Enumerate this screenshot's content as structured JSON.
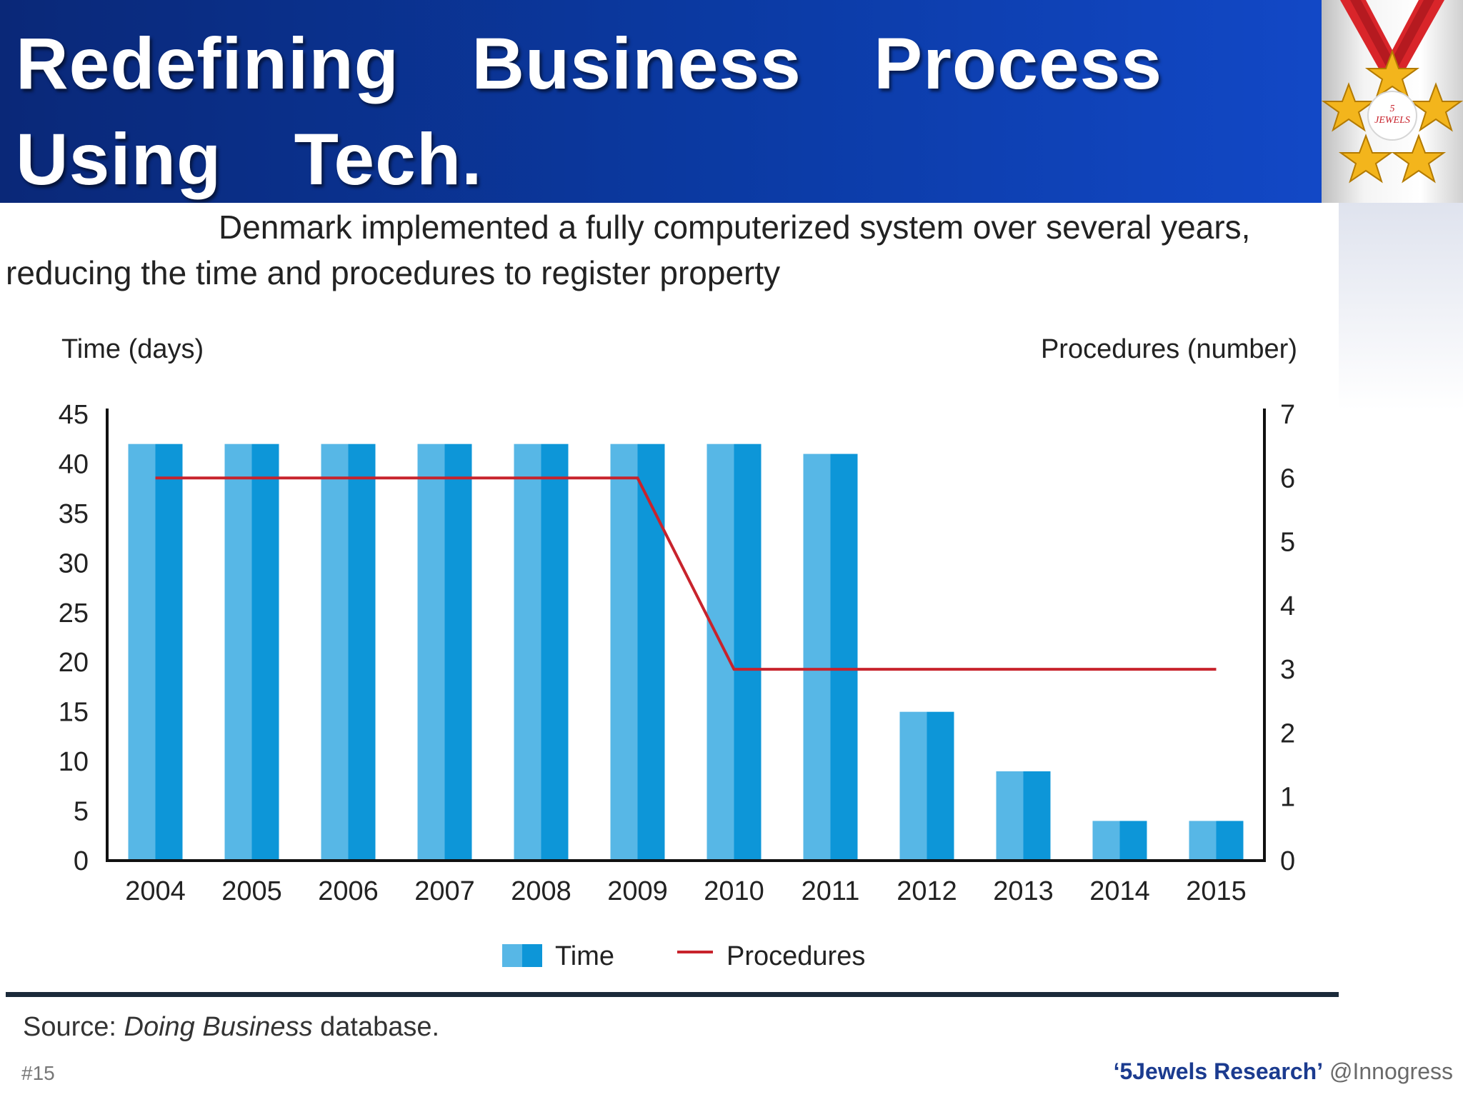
{
  "header": {
    "title": "Redefining Business Process Using Tech.",
    "logo_text_number": "5",
    "logo_text_word": "JEWELS"
  },
  "subtitle": "Denmark implemented a fully computerized system over several years, reducing the time and procedures to register property",
  "chart_data": {
    "type": "bar+line",
    "categories": [
      "2004",
      "2005",
      "2006",
      "2007",
      "2008",
      "2009",
      "2010",
      "2011",
      "2012",
      "2013",
      "2014",
      "2015"
    ],
    "series": [
      {
        "name": "Time",
        "type": "bar",
        "axis": "left",
        "values": [
          42,
          42,
          42,
          42,
          42,
          42,
          42,
          41,
          15,
          9,
          4,
          4
        ]
      },
      {
        "name": "Procedures",
        "type": "line",
        "axis": "right",
        "values": [
          6,
          6,
          6,
          6,
          6,
          6,
          3,
          3,
          3,
          3,
          3,
          3
        ]
      }
    ],
    "left_axis": {
      "label": "Time (days)",
      "ylim": [
        0,
        45
      ],
      "ticks": [
        0,
        5,
        10,
        15,
        20,
        25,
        30,
        35,
        40,
        45
      ]
    },
    "right_axis": {
      "label": "Procedures (number)",
      "ylim": [
        0,
        7
      ],
      "ticks": [
        0,
        1,
        2,
        3,
        4,
        5,
        6,
        7
      ]
    },
    "legend": [
      "Time",
      "Procedures"
    ],
    "legend_position": "bottom-center",
    "colors": {
      "bar": "#3fa9e0",
      "bar_dark": "#0d93d6",
      "line": "#c8232c",
      "axis": "#111111"
    }
  },
  "source": {
    "prefix": "Source: ",
    "italic": "Doing Business",
    "suffix": " database."
  },
  "footer": {
    "slide_number": "#15",
    "brand": "‘5Jewels Research’",
    "handle": " @Innogress"
  }
}
